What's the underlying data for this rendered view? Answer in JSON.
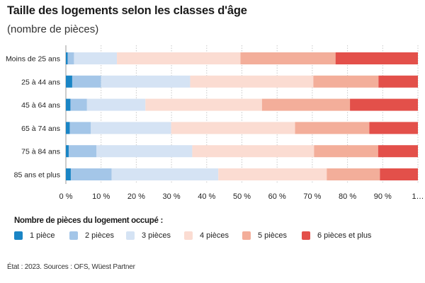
{
  "header": {
    "title": "Taille des logements selon les classes d'âge",
    "subtitle": "(nombre de pièces)"
  },
  "legend": {
    "title": "Nombre de pièces du logement occupé :"
  },
  "footer": {
    "source": "État : 2023. Sources : OFS, Wüest Partner"
  },
  "chart_data": {
    "type": "bar",
    "orientation": "horizontal",
    "stacked": true,
    "title": "Taille des logements selon les classes d'âge",
    "subtitle": "(nombre de pièces)",
    "categories": [
      "Moins de 25 ans",
      "25 à 44 ans",
      "45 à 64 ans",
      "65 à 74 ans",
      "75 à 84 ans",
      "85 ans et plus"
    ],
    "series": [
      {
        "name": "1 pièce",
        "color": "#1a85c5",
        "values": [
          0.5,
          1.8,
          1.3,
          1.1,
          0.8,
          1.4
        ]
      },
      {
        "name": "2 pièces",
        "color": "#a4c6e8",
        "values": [
          1.8,
          8.2,
          4.7,
          6.0,
          7.9,
          11.6
        ]
      },
      {
        "name": "3 pièces",
        "color": "#d5e3f4",
        "values": [
          12.2,
          25.3,
          16.6,
          22.8,
          27.2,
          30.3
        ]
      },
      {
        "name": "4 pièces",
        "color": "#fbdcd2",
        "values": [
          35.1,
          35.0,
          33.1,
          35.2,
          34.6,
          30.8
        ]
      },
      {
        "name": "5 pièces",
        "color": "#f3ae9a",
        "values": [
          27.0,
          18.5,
          25.0,
          21.1,
          18.2,
          15.1
        ]
      },
      {
        "name": "6 pièces et plus",
        "color": "#e3504a",
        "values": [
          23.4,
          11.2,
          19.3,
          13.8,
          11.3,
          10.8
        ]
      }
    ],
    "xlim": [
      0,
      100
    ],
    "xticks": [
      "0 %",
      "10 %",
      "20 %",
      "30 %",
      "40 %",
      "50 %",
      "60 %",
      "70 %",
      "80 %",
      "90 %",
      "1…"
    ],
    "xlabel": "",
    "ylabel": "",
    "grid": true,
    "legend_position": "bottom"
  }
}
